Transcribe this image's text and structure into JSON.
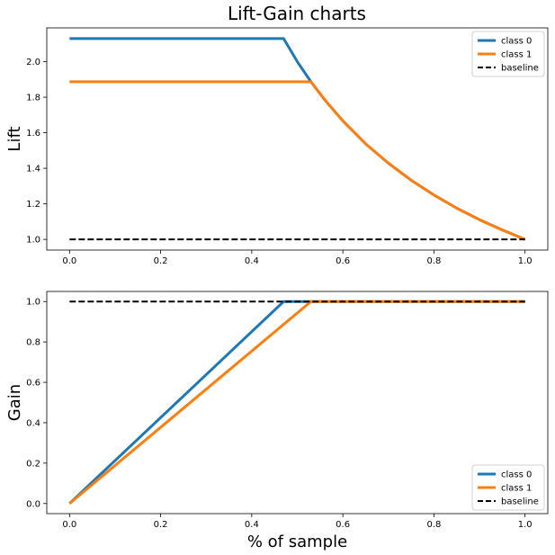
{
  "title": "Lift-Gain charts",
  "chart_data": [
    {
      "type": "line",
      "ylabel": "Lift",
      "xlabel": "",
      "xlim": [
        -0.05,
        1.05
      ],
      "ylim": [
        0.94,
        2.19
      ],
      "xticks": [
        0.0,
        0.2,
        0.4,
        0.6,
        0.8,
        1.0
      ],
      "xtick_labels": [
        "0.0",
        "0.2",
        "0.4",
        "0.6",
        "0.8",
        "1.0"
      ],
      "yticks": [
        1.0,
        1.2,
        1.4,
        1.6,
        1.8,
        2.0
      ],
      "ytick_labels": [
        "1.0",
        "1.2",
        "1.4",
        "1.6",
        "1.8",
        "2.0"
      ],
      "legend_position": "top-right",
      "series": [
        {
          "name": "class 0",
          "color": "#1f77b4",
          "style": "solid",
          "x": [
            0,
            0.47,
            0.5,
            0.53,
            0.56,
            0.6,
            0.65,
            0.7,
            0.75,
            0.8,
            0.85,
            0.9,
            0.95,
            1.0
          ],
          "y": [
            2.13,
            2.13,
            2.0,
            1.887,
            1.786,
            1.667,
            1.538,
            1.429,
            1.333,
            1.25,
            1.176,
            1.111,
            1.053,
            1.0
          ]
        },
        {
          "name": "class 1",
          "color": "#ff7f0e",
          "style": "solid",
          "x": [
            0,
            0.53,
            0.56,
            0.6,
            0.65,
            0.7,
            0.75,
            0.8,
            0.85,
            0.9,
            0.95,
            1.0
          ],
          "y": [
            1.887,
            1.887,
            1.786,
            1.667,
            1.538,
            1.429,
            1.333,
            1.25,
            1.176,
            1.111,
            1.053,
            1.0
          ]
        },
        {
          "name": "baseline",
          "color": "#000000",
          "style": "dashed",
          "x": [
            0,
            1
          ],
          "y": [
            1,
            1
          ]
        }
      ]
    },
    {
      "type": "line",
      "ylabel": "Gain",
      "xlabel": "% of sample",
      "xlim": [
        -0.05,
        1.05
      ],
      "ylim": [
        -0.05,
        1.05
      ],
      "xticks": [
        0.0,
        0.2,
        0.4,
        0.6,
        0.8,
        1.0
      ],
      "xtick_labels": [
        "0.0",
        "0.2",
        "0.4",
        "0.6",
        "0.8",
        "1.0"
      ],
      "yticks": [
        0.0,
        0.2,
        0.4,
        0.6,
        0.8,
        1.0
      ],
      "ytick_labels": [
        "0.0",
        "0.2",
        "0.4",
        "0.6",
        "0.8",
        "1.0"
      ],
      "legend_position": "bottom-right",
      "series": [
        {
          "name": "class 0",
          "color": "#1f77b4",
          "style": "solid",
          "x": [
            0,
            0.47,
            1.0
          ],
          "y": [
            0,
            1.0,
            1.0
          ]
        },
        {
          "name": "class 1",
          "color": "#ff7f0e",
          "style": "solid",
          "x": [
            0,
            0.53,
            1.0
          ],
          "y": [
            0,
            1.0,
            1.0
          ]
        },
        {
          "name": "baseline",
          "color": "#000000",
          "style": "dashed",
          "x": [
            0,
            1
          ],
          "y": [
            1,
            1
          ]
        }
      ]
    }
  ]
}
